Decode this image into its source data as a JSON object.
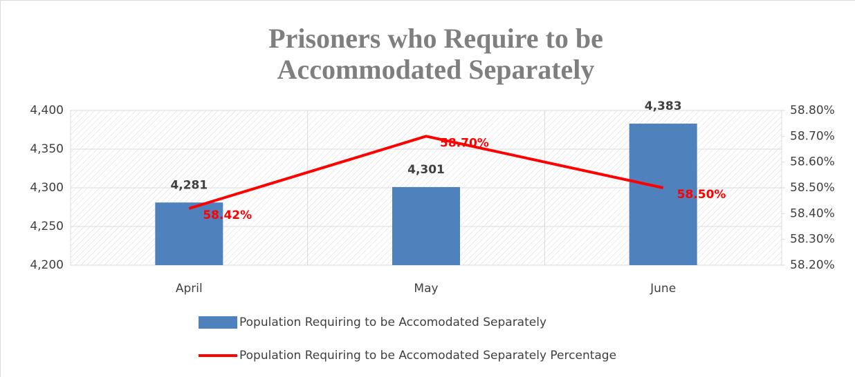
{
  "chart_data": {
    "type": "bar",
    "title": [
      "Prisoners who Require to be",
      "Accommodated Separately"
    ],
    "categories": [
      "April",
      "May",
      "June"
    ],
    "series": [
      {
        "name": "Population Requiring to be Accomodated Separately",
        "type": "bar",
        "color": "#4f81bd",
        "values": [
          4281,
          4301,
          4383
        ],
        "value_labels": [
          "4,281",
          "4,301",
          "4,383"
        ]
      },
      {
        "name": "Population Requiring to be Accomodated Separately Percentage",
        "type": "line",
        "axis": "y2",
        "color": "#ff0000",
        "values": [
          58.42,
          58.7,
          58.5
        ],
        "value_labels": [
          "58.42%",
          "58.70%",
          "58.50%"
        ]
      }
    ],
    "ylim": [
      4200,
      4400
    ],
    "yticks": [
      {
        "value": 4200,
        "label": "4,200"
      },
      {
        "value": 4250,
        "label": "4,250"
      },
      {
        "value": 4300,
        "label": "4,300"
      },
      {
        "value": 4350,
        "label": "4,350"
      },
      {
        "value": 4400,
        "label": "4,400"
      }
    ],
    "y2lim": [
      58.2,
      58.8
    ],
    "y2ticks": [
      {
        "value": 58.2,
        "label": "58.20%"
      },
      {
        "value": 58.3,
        "label": "58.30%"
      },
      {
        "value": 58.4,
        "label": "58.40%"
      },
      {
        "value": 58.5,
        "label": "58.50%"
      },
      {
        "value": 58.6,
        "label": "58.60%"
      },
      {
        "value": 58.7,
        "label": "58.70%"
      },
      {
        "value": 58.8,
        "label": "58.80%"
      }
    ],
    "grid": true,
    "legend": "bottom"
  }
}
